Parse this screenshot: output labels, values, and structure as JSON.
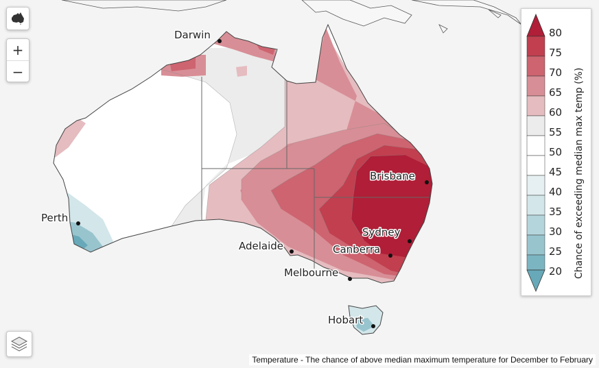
{
  "map": {
    "cities": [
      {
        "name": "Darwin"
      },
      {
        "name": "Brisbane"
      },
      {
        "name": "Perth"
      },
      {
        "name": "Sydney"
      },
      {
        "name": "Adelaide"
      },
      {
        "name": "Canberra"
      },
      {
        "name": "Melbourne"
      },
      {
        "name": "Hobart"
      }
    ],
    "colors": {
      "ocean": "#f4f4f4",
      "c20": "#67a9b9",
      "c30": "#98c4ce",
      "c40": "#d3e6ea",
      "c50": "#ffffff",
      "c55": "#ececec",
      "c60": "#e5bcc0",
      "c65": "#d88e96",
      "c70": "#cd6470",
      "c75": "#c13f4f",
      "c80": "#b01e37"
    }
  },
  "controls": {
    "zoom_in": "+",
    "zoom_out": "−",
    "home_icon": "australia-icon",
    "layers_icon": "layers-icon"
  },
  "legend": {
    "title": "Chance of exceeding median max temp (%)",
    "ticks": [
      "80",
      "75",
      "70",
      "65",
      "60",
      "55",
      "50",
      "45",
      "40",
      "35",
      "30",
      "25",
      "20"
    ]
  },
  "caption": "Temperature - The chance of above median maximum temperature for December to February"
}
